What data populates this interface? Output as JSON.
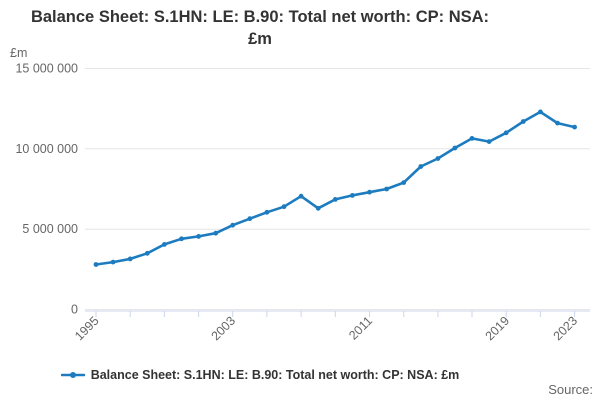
{
  "chart_data": {
    "type": "line",
    "title": "Balance Sheet: S.1HN: LE: B.90: Total net worth: CP: NSA: £m",
    "unit_label": "£m",
    "xlabel": "",
    "ylabel": "£m",
    "ylim": [
      0,
      15000000
    ],
    "grid": "horizontal",
    "legend_position": "bottom",
    "x": [
      1995,
      1996,
      1997,
      1998,
      1999,
      2000,
      2001,
      2002,
      2003,
      2004,
      2005,
      2006,
      2007,
      2008,
      2009,
      2010,
      2011,
      2012,
      2013,
      2014,
      2015,
      2016,
      2017,
      2018,
      2019,
      2020,
      2021,
      2022,
      2023
    ],
    "series": [
      {
        "name": "Balance Sheet: S.1HN: LE: B.90: Total net worth: CP: NSA: £m",
        "color": "#1c7cbf",
        "values": [
          2800000,
          2950000,
          3150000,
          3500000,
          4050000,
          4400000,
          4550000,
          4750000,
          5250000,
          5650000,
          6050000,
          6400000,
          7050000,
          6300000,
          6850000,
          7100000,
          7300000,
          7500000,
          7900000,
          8900000,
          9400000,
          10050000,
          10650000,
          10450000,
          11000000,
          11700000,
          12300000,
          11600000,
          11350000
        ]
      }
    ],
    "y_ticks": {
      "values": [
        0,
        5000000,
        10000000,
        15000000
      ],
      "labels": [
        "0",
        "5 000 000",
        "10 000 000",
        "15 000 000"
      ]
    },
    "x_ticks": {
      "minor_step": 2,
      "labeled_years": [
        1995,
        2003,
        2011,
        2019,
        2023
      ]
    },
    "colors": {
      "grid": "#e6e6e6",
      "axis": "#ccd6eb",
      "label": "#666666",
      "title": "#333333"
    }
  },
  "footer": {
    "source_label": "Source:"
  }
}
